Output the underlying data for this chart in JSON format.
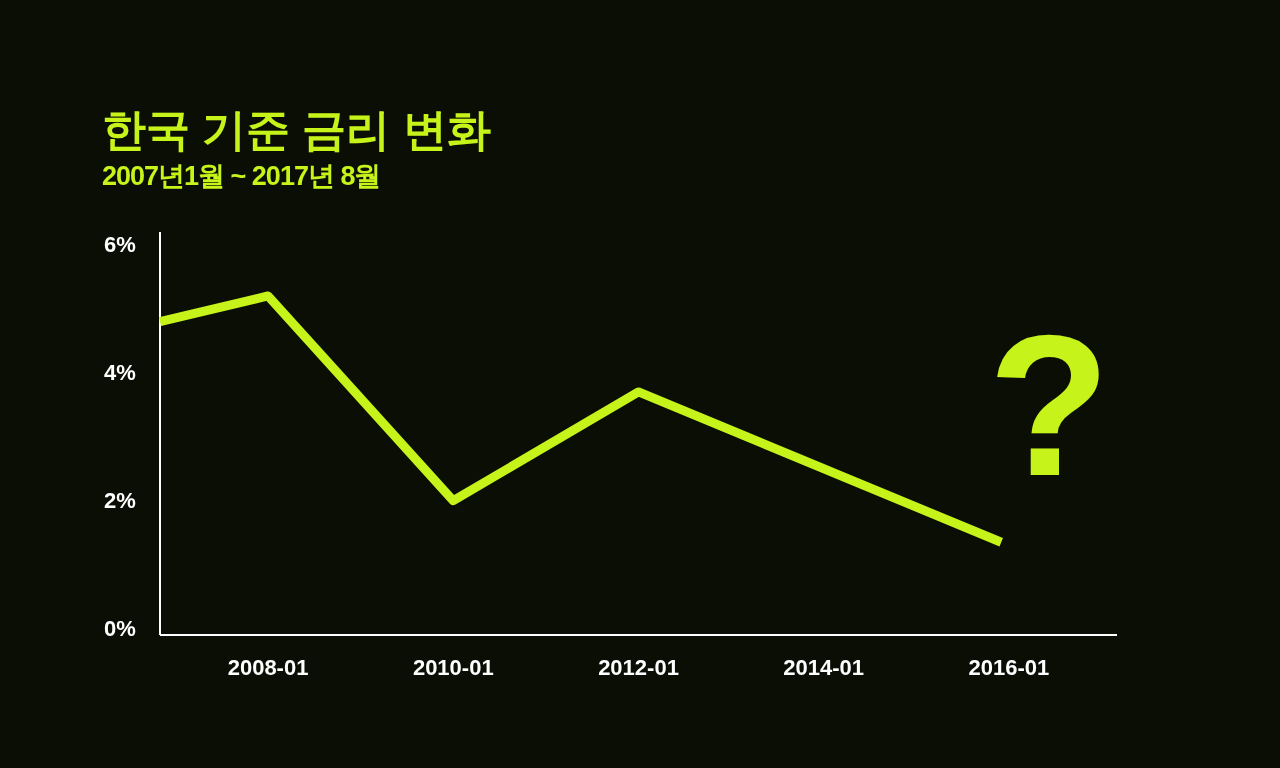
{
  "chart_data": {
    "type": "line",
    "title": "한국 기준 금리 변화",
    "subtitle": "2007년1월 ~ 2017년 8월",
    "series": [
      {
        "color": "#c6f31a",
        "x": [
          "2006-11",
          "2008-01",
          "2010-01",
          "2012-01",
          "2015-12"
        ],
        "values": [
          4.8,
          5.2,
          2.0,
          3.7,
          1.35
        ]
      }
    ],
    "xlim": [
      "2006-11",
      "2017-03"
    ],
    "xticks": [
      "2008-01",
      "2010-01",
      "2012-01",
      "2014-01",
      "2016-01"
    ],
    "ylim": [
      -0.1,
      6.2
    ],
    "yticks": [
      {
        "value": 0,
        "label": "0%"
      },
      {
        "value": 2,
        "label": "2%"
      },
      {
        "value": 4,
        "label": "4%"
      },
      {
        "value": 6,
        "label": "6%"
      }
    ],
    "grid": false,
    "marker": "none",
    "line_style": "solid",
    "annotations": [
      "?"
    ]
  }
}
